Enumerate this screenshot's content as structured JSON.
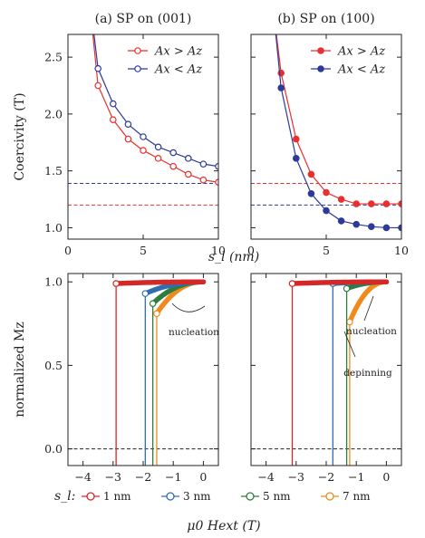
{
  "chart_data": [
    {
      "type": "line",
      "title": "(a) SP on (001)",
      "xlabel": "s_l (nm)",
      "ylabel": "Coercivity (T)",
      "xlim": [
        0,
        10
      ],
      "ylim": [
        0.9,
        2.7
      ],
      "xticks": [
        0,
        5,
        10
      ],
      "yticks": [
        1.0,
        1.5,
        2.0,
        2.5
      ],
      "legend": "top-right",
      "series": [
        {
          "name": "Ax > Az",
          "color": "#e8302f",
          "marker": "open-circle",
          "x": [
            2,
            3,
            4,
            5,
            6,
            7,
            8,
            9,
            10
          ],
          "y": [
            2.25,
            1.95,
            1.78,
            1.68,
            1.61,
            1.54,
            1.47,
            1.42,
            1.4
          ],
          "extrapolated_left": [
            1.5,
            2.9
          ]
        },
        {
          "name": "Ax < Az",
          "color": "#2d3a9a",
          "marker": "open-circle",
          "x": [
            2,
            3,
            4,
            5,
            6,
            7,
            8,
            9,
            10
          ],
          "y": [
            2.4,
            2.09,
            1.91,
            1.8,
            1.71,
            1.66,
            1.61,
            1.56,
            1.54
          ],
          "extrapolated_left": [
            1.55,
            2.9
          ]
        }
      ],
      "hlines": [
        {
          "y": 1.39,
          "color": "#2d3a9a"
        },
        {
          "y": 1.2,
          "color": "#e8302f"
        }
      ]
    },
    {
      "type": "line",
      "title": "(b) SP on (100)",
      "xlabel": "",
      "ylabel": "",
      "xlim": [
        0,
        10
      ],
      "ylim": [
        0.9,
        2.7
      ],
      "xticks": [
        0,
        5,
        10
      ],
      "yticks": [
        1.0,
        1.5,
        2.0,
        2.5
      ],
      "legend": "top-right",
      "series": [
        {
          "name": "Ax > Az",
          "color": "#e8302f",
          "marker": "filled-circle",
          "x": [
            2,
            3,
            4,
            5,
            6,
            7,
            8,
            9,
            10
          ],
          "y": [
            2.36,
            1.78,
            1.47,
            1.31,
            1.25,
            1.21,
            1.21,
            1.21,
            1.21
          ],
          "extrapolated_left": [
            1.5,
            2.9
          ]
        },
        {
          "name": "Ax < Az",
          "color": "#2d3a9a",
          "marker": "filled-circle",
          "x": [
            2,
            3,
            4,
            5,
            6,
            7,
            8,
            9,
            10
          ],
          "y": [
            2.23,
            1.61,
            1.3,
            1.15,
            1.06,
            1.03,
            1.01,
            1.0,
            1.0
          ],
          "extrapolated_left": [
            1.5,
            2.9
          ]
        }
      ],
      "hlines": [
        {
          "y": 1.39,
          "color": "#e8302f"
        },
        {
          "y": 1.2,
          "color": "#2d3a9a"
        }
      ]
    },
    {
      "type": "line",
      "title": "",
      "xlabel": "μ0 Hext (T)",
      "ylabel": "normalized Mz",
      "xlim": [
        -4.5,
        0.5
      ],
      "ylim": [
        -0.1,
        1.05
      ],
      "xticks": [
        -4,
        -3,
        -2,
        -1,
        0
      ],
      "yticks": [
        0.0,
        0.5,
        1.0
      ],
      "annotations": [
        "nucleation"
      ],
      "series": [
        {
          "name": "1 nm",
          "color": "#d62728",
          "switch_field": -2.9,
          "m_at_switch": 0.99
        },
        {
          "name": "3 nm",
          "color": "#2f6db3",
          "switch_field": -1.93,
          "m_at_switch": 0.93
        },
        {
          "name": "5 nm",
          "color": "#2e7d3e",
          "switch_field": -1.68,
          "m_at_switch": 0.87
        },
        {
          "name": "7 nm",
          "color": "#f08a1c",
          "switch_field": -1.55,
          "m_at_switch": 0.81
        }
      ]
    },
    {
      "type": "line",
      "title": "",
      "xlabel": "",
      "ylabel": "",
      "xlim": [
        -4.5,
        0.5
      ],
      "ylim": [
        -0.1,
        1.05
      ],
      "xticks": [
        -4,
        -3,
        -2,
        -1,
        0
      ],
      "yticks": [
        0.0,
        0.5,
        1.0
      ],
      "annotations": [
        "nucleation",
        "depinning"
      ],
      "series": [
        {
          "name": "1 nm",
          "color": "#d62728",
          "switch_field": -3.13,
          "m_at_switch": 0.99
        },
        {
          "name": "3 nm",
          "color": "#2f6db3",
          "switch_field": -1.78,
          "m_at_switch": 0.99
        },
        {
          "name": "5 nm",
          "color": "#2e7d3e",
          "switch_field": -1.32,
          "m_at_switch": 0.96
        },
        {
          "name": "7 nm",
          "color": "#f08a1c",
          "switch_field": -1.22,
          "m_at_switch": 0.76
        }
      ]
    }
  ],
  "bottom_legend": {
    "label": "s_l:",
    "entries": [
      "1 nm",
      "3 nm",
      "5 nm",
      "7 nm"
    ]
  }
}
